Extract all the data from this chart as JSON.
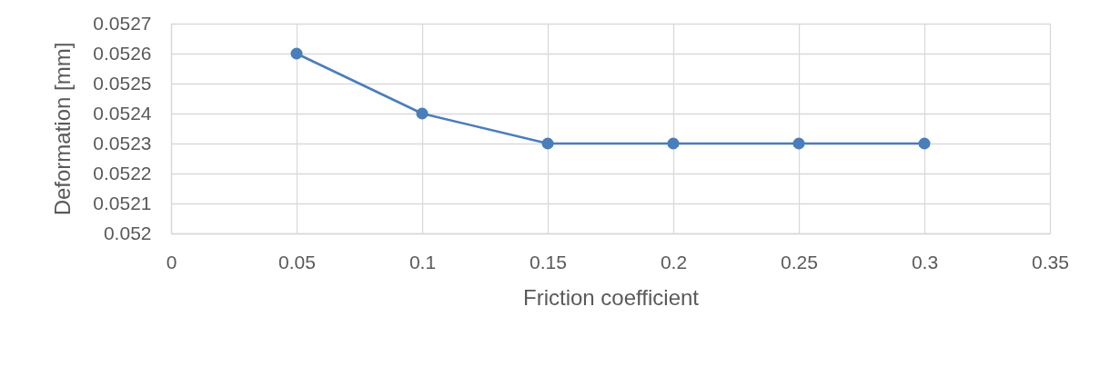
{
  "chart_data": {
    "type": "line",
    "xlabel": "Friction coefficient",
    "ylabel": "Deformation [mm]",
    "x": [
      0.05,
      0.1,
      0.15,
      0.2,
      0.25,
      0.3
    ],
    "series": [
      {
        "color": "#4a7ebb",
        "values": [
          0.0526,
          0.0524,
          0.0523,
          0.0523,
          0.0523,
          0.0523
        ]
      }
    ],
    "xlim": [
      0,
      0.35
    ],
    "ylim": [
      0.052,
      0.0527
    ],
    "xticks": [
      0,
      0.05,
      0.1,
      0.15,
      0.2,
      0.25,
      0.3,
      0.35
    ],
    "yticks": [
      0.052,
      0.0521,
      0.0522,
      0.0523,
      0.0524,
      0.0525,
      0.0526,
      0.0527
    ],
    "grid": true,
    "marker": "circle",
    "line_style": "solid"
  }
}
